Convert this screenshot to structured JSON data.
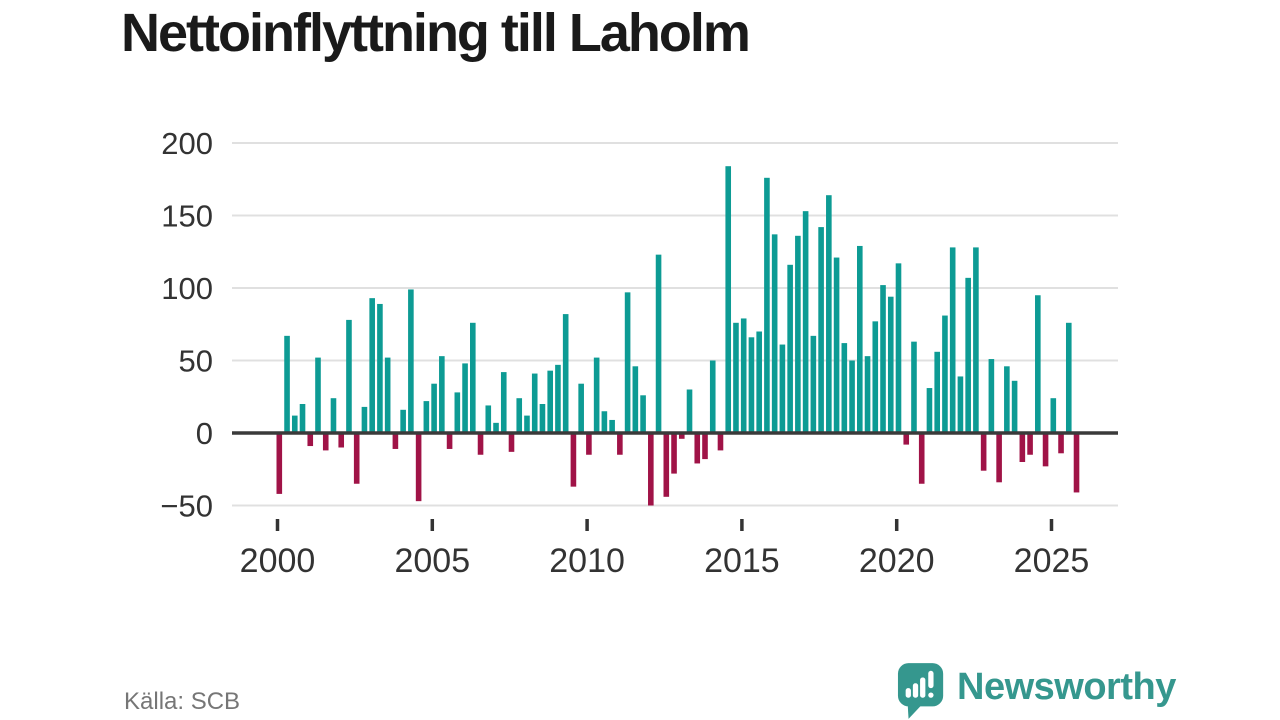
{
  "title": "Nettoinflyttning till Laholm",
  "source": "Källa: SCB",
  "branding": {
    "name": "Newsworthy",
    "logo_icon": "speech-bubble-bar-chart-exclamation",
    "logo_color": "#35978e"
  },
  "colors": {
    "positive_bar": "#0d9b94",
    "negative_bar": "#a01347",
    "gridline": "#e0e0e0",
    "zero_line": "#3a3a3a",
    "axis_text": "#333333",
    "title_text": "#1a1a1a",
    "source_text": "#767676"
  },
  "chart_data": {
    "type": "bar",
    "title": "Nettoinflyttning till Laholm",
    "frequency": "quarterly",
    "x_range": "2000 Q1 – 2025 Q4",
    "start_year": 2000,
    "x_tick_years": [
      "2000",
      "2005",
      "2010",
      "2015",
      "2020",
      "2025"
    ],
    "y_ticks": [
      200,
      150,
      100,
      50,
      0,
      -50
    ],
    "ylim": [
      -60,
      210
    ],
    "grid": "horizontal",
    "legend": "none",
    "values": [
      -42,
      67,
      12,
      20,
      -9,
      52,
      -12,
      24,
      -10,
      78,
      -35,
      18,
      93,
      89,
      52,
      -11,
      16,
      99,
      -47,
      22,
      34,
      53,
      -11,
      28,
      48,
      76,
      -15,
      19,
      7,
      42,
      -13,
      24,
      12,
      41,
      20,
      43,
      47,
      82,
      -37,
      34,
      -15,
      52,
      15,
      9,
      -15,
      97,
      46,
      26,
      -50,
      123,
      -44,
      -28,
      -4,
      30,
      -21,
      -18,
      50,
      -12,
      184,
      76,
      79,
      66,
      70,
      176,
      137,
      61,
      116,
      136,
      153,
      67,
      142,
      164,
      121,
      62,
      50,
      129,
      53,
      77,
      102,
      94,
      117,
      -8,
      63,
      -35,
      31,
      56,
      81,
      128,
      39,
      107,
      128,
      -26,
      51,
      -34,
      46,
      36,
      -20,
      -15,
      95,
      -23,
      24,
      -14,
      76,
      -41
    ]
  }
}
